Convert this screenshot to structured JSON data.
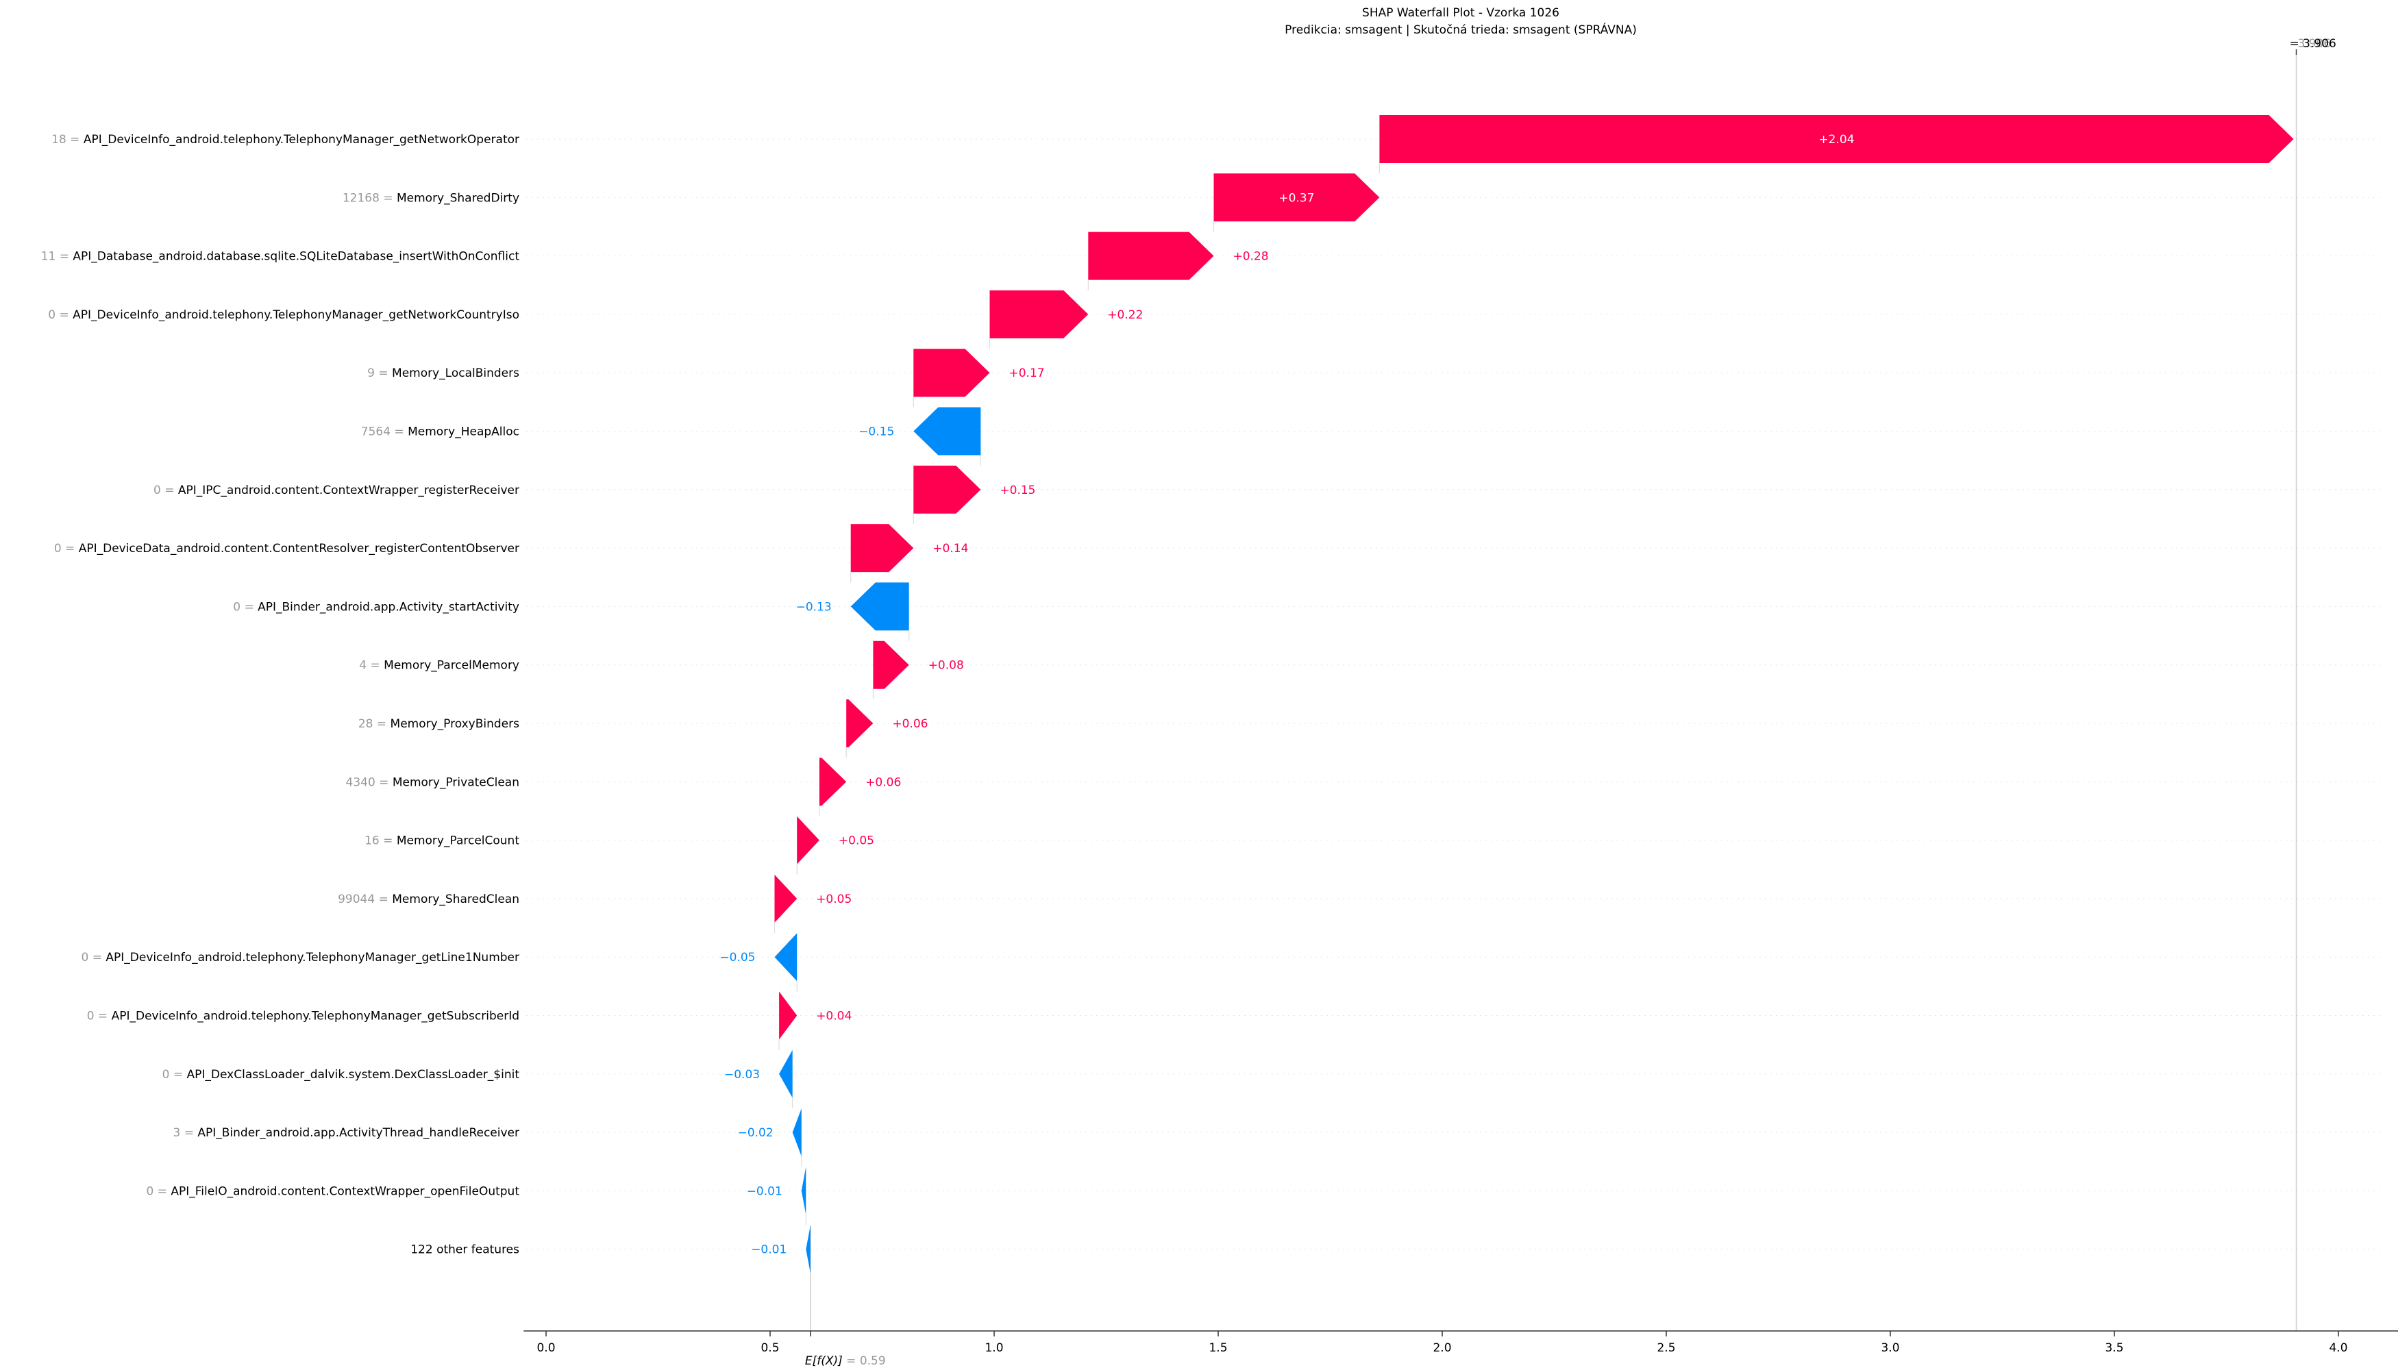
{
  "title": "SHAP Waterfall Plot - Vzorka 1026",
  "subtitle": "Predikcia: smsagent | Skutočná trieda: smsagent (SPRÁVNA)",
  "chart_data": {
    "type": "bar",
    "base_value": 0.59,
    "base_value_text": "0.59",
    "base_label": "E[f(X)]",
    "output_value": 3.906,
    "output_text": "= 3.906",
    "output_ghost_text": "3.906",
    "xlim": [
      -0.05,
      4.15
    ],
    "x_ticks": [
      0.0,
      0.5,
      1.0,
      1.5,
      2.0,
      2.5,
      3.0,
      3.5,
      4.0
    ],
    "x_tick_labels": [
      "0.0",
      "0.5",
      "1.0",
      "1.5",
      "2.0",
      "2.5",
      "3.0",
      "3.5",
      "4.0"
    ],
    "colors": {
      "positive": "#ff0051",
      "negative": "#008bfb",
      "inside_label": "#ffffff",
      "feature_value": "#999999",
      "grid": "#e6e6e6",
      "axis": "#333333"
    },
    "features": [
      {
        "value": "18",
        "name": "API_DeviceInfo_android.telephony.TelephonyManager_getNetworkOperator",
        "shap": 2.04,
        "label": "+2.04",
        "label_inside": true
      },
      {
        "value": "12168",
        "name": "Memory_SharedDirty",
        "shap": 0.37,
        "label": "+0.37",
        "label_inside": true
      },
      {
        "value": "11",
        "name": "API_Database_android.database.sqlite.SQLiteDatabase_insertWithOnConflict",
        "shap": 0.28,
        "label": "+0.28",
        "label_inside": false
      },
      {
        "value": "0",
        "name": "API_DeviceInfo_android.telephony.TelephonyManager_getNetworkCountryIso",
        "shap": 0.22,
        "label": "+0.22",
        "label_inside": false
      },
      {
        "value": "9",
        "name": "Memory_LocalBinders",
        "shap": 0.17,
        "label": "+0.17",
        "label_inside": false
      },
      {
        "value": "7564",
        "name": "Memory_HeapAlloc",
        "shap": -0.15,
        "label": "−0.15",
        "label_inside": false
      },
      {
        "value": "0",
        "name": "API_IPC_android.content.ContextWrapper_registerReceiver",
        "shap": 0.15,
        "label": "+0.15",
        "label_inside": false
      },
      {
        "value": "0",
        "name": "API_DeviceData_android.content.ContentResolver_registerContentObserver",
        "shap": 0.14,
        "label": "+0.14",
        "label_inside": false
      },
      {
        "value": "0",
        "name": "API_Binder_android.app.Activity_startActivity",
        "shap": -0.13,
        "label": "−0.13",
        "label_inside": false
      },
      {
        "value": "4",
        "name": "Memory_ParcelMemory",
        "shap": 0.08,
        "label": "+0.08",
        "label_inside": false
      },
      {
        "value": "28",
        "name": "Memory_ProxyBinders",
        "shap": 0.06,
        "label": "+0.06",
        "label_inside": false
      },
      {
        "value": "4340",
        "name": "Memory_PrivateClean",
        "shap": 0.06,
        "label": "+0.06",
        "label_inside": false
      },
      {
        "value": "16",
        "name": "Memory_ParcelCount",
        "shap": 0.05,
        "label": "+0.05",
        "label_inside": false
      },
      {
        "value": "99044",
        "name": "Memory_SharedClean",
        "shap": 0.05,
        "label": "+0.05",
        "label_inside": false
      },
      {
        "value": "0",
        "name": "API_DeviceInfo_android.telephony.TelephonyManager_getLine1Number",
        "shap": -0.05,
        "label": "−0.05",
        "label_inside": false
      },
      {
        "value": "0",
        "name": "API_DeviceInfo_android.telephony.TelephonyManager_getSubscriberId",
        "shap": 0.04,
        "label": "+0.04",
        "label_inside": false
      },
      {
        "value": "0",
        "name": "API_DexClassLoader_dalvik.system.DexClassLoader_$init",
        "shap": -0.03,
        "label": "−0.03",
        "label_inside": false
      },
      {
        "value": "3",
        "name": "API_Binder_android.app.ActivityThread_handleReceiver",
        "shap": -0.02,
        "label": "−0.02",
        "label_inside": false
      },
      {
        "value": "0",
        "name": "API_FileIO_android.content.ContextWrapper_openFileOutput",
        "shap": -0.01,
        "label": "−0.01",
        "label_inside": false
      },
      {
        "value": "",
        "name": "122 other features",
        "shap": -0.01,
        "label": "−0.01",
        "label_inside": false
      }
    ]
  }
}
